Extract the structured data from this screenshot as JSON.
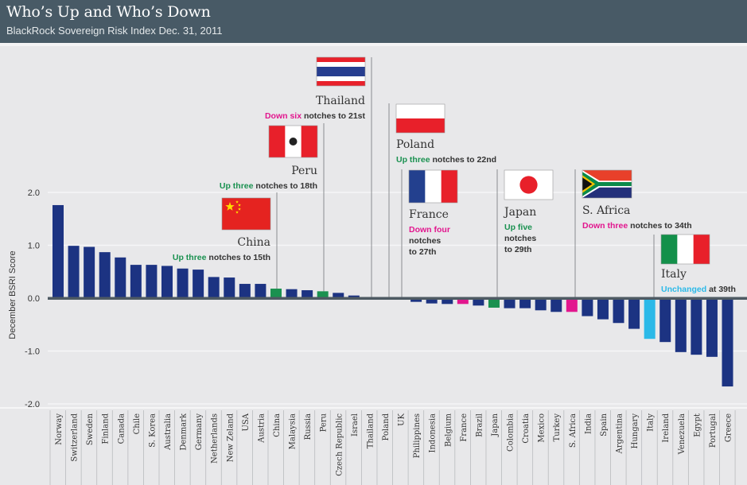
{
  "header": {
    "title": "Who’s Up and Who’s Down",
    "subtitle": "BlackRock Sovereign Risk Index Dec. 31, 2011"
  },
  "colors": {
    "bar_default": "#1c3382",
    "up": "#1a9150",
    "down": "#e2168e",
    "unchanged": "#2bb9e8",
    "header_bg": "#485a66",
    "plot_bg": "#e8e8ea"
  },
  "chart_data": {
    "type": "bar",
    "title": "Who’s Up and Who’s Down",
    "subtitle": "BlackRock Sovereign Risk Index Dec. 31, 2011",
    "xlabel": "",
    "ylabel": "December BSRI Score",
    "ylim": [
      -2.0,
      2.0
    ],
    "yticks": [
      "2.0",
      "1.0",
      "0.0",
      "-1.0",
      "-2.0"
    ],
    "ytick_values": [
      2.0,
      1.0,
      0.0,
      -1.0,
      -2.0
    ],
    "grid": true,
    "categories": [
      "Norway",
      "Switzerland",
      "Sweden",
      "Finland",
      "Canada",
      "Chile",
      "S. Korea",
      "Australia",
      "Denmark",
      "Germany",
      "Netherlands",
      "New Zeland",
      "USA",
      "Austria",
      "China",
      "Malaysia",
      "Russia",
      "Peru",
      "Czech Republic",
      "Israel",
      "Thailand",
      "Poland",
      "UK",
      "Philippines",
      "Indonesia",
      "Belgium",
      "France",
      "Brazil",
      "Japan",
      "Colombia",
      "Croatia",
      "Mexico",
      "Turkey",
      "S. Africa",
      "India",
      "Spain",
      "Argentina",
      "Hungary",
      "Italy",
      "Ireland",
      "Venezuela",
      "Egypt",
      "Portugal",
      "Greece"
    ],
    "values": [
      1.76,
      0.99,
      0.97,
      0.87,
      0.77,
      0.63,
      0.63,
      0.61,
      0.56,
      0.54,
      0.4,
      0.39,
      0.27,
      0.27,
      0.18,
      0.17,
      0.15,
      0.13,
      0.1,
      0.05,
      0.02,
      0.0,
      -0.03,
      -0.07,
      -0.1,
      -0.11,
      -0.11,
      -0.14,
      -0.18,
      -0.19,
      -0.19,
      -0.23,
      -0.26,
      -0.26,
      -0.34,
      -0.4,
      -0.47,
      -0.58,
      -0.77,
      -0.83,
      -1.02,
      -1.07,
      -1.11,
      -1.67
    ],
    "highlight": {
      "China": "up",
      "Peru": "up",
      "Thailand": "down",
      "Poland": "up",
      "France": "down",
      "Japan": "up",
      "S. Africa": "down",
      "Italy": "unchanged"
    },
    "annotations": [
      {
        "country": "China",
        "name": "China",
        "change": "Up three",
        "rest": " notches to 15th",
        "status": "up",
        "flag": "china"
      },
      {
        "country": "Peru",
        "name": "Peru",
        "change": "Up three",
        "rest": " notches to 18th",
        "status": "up",
        "flag": "peru"
      },
      {
        "country": "Thailand",
        "name": "Thailand",
        "change": "Down six",
        "rest": " notches to 21st",
        "status": "down",
        "flag": "thailand"
      },
      {
        "country": "Poland",
        "name": "Poland",
        "change": "Up three",
        "rest": " notches to 22nd",
        "status": "up",
        "flag": "poland"
      },
      {
        "country": "France",
        "name": "France",
        "change": "Down four",
        "rest_lines": [
          "notches",
          "to 27th"
        ],
        "status": "down",
        "flag": "france"
      },
      {
        "country": "Japan",
        "name": "Japan",
        "change": "Up five",
        "rest_lines": [
          "notches",
          "to 29th"
        ],
        "status": "up",
        "flag": "japan"
      },
      {
        "country": "S. Africa",
        "name": "S. Africa",
        "change": "Down three",
        "rest": " notches to 34th",
        "status": "down",
        "flag": "south-africa"
      },
      {
        "country": "Italy",
        "name": "Italy",
        "change": "Unchanged",
        "rest": " at 39th",
        "status": "unchanged",
        "flag": "italy"
      }
    ]
  }
}
